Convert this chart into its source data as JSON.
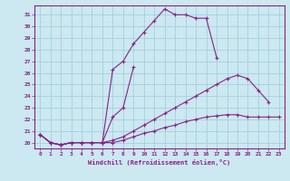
{
  "xlabel": "Windchill (Refroidissement éolien,°C)",
  "bg_color": "#cce8f0",
  "grid_color": "#99ccdd",
  "line_color": "#882288",
  "spine_color": "#882288",
  "xlim": [
    -0.5,
    23.5
  ],
  "ylim": [
    19.5,
    31.8
  ],
  "yticks": [
    20,
    21,
    22,
    23,
    24,
    25,
    26,
    27,
    28,
    29,
    30,
    31
  ],
  "xticks": [
    0,
    1,
    2,
    3,
    4,
    5,
    6,
    7,
    8,
    9,
    10,
    11,
    12,
    13,
    14,
    15,
    16,
    17,
    18,
    19,
    20,
    21,
    22,
    23
  ],
  "series": [
    {
      "x": [
        0,
        1,
        2,
        3,
        4,
        5,
        6,
        7,
        8,
        9,
        10,
        11,
        12,
        13,
        14,
        15,
        16,
        17
      ],
      "y": [
        20.7,
        20.0,
        19.8,
        20.0,
        20.0,
        20.0,
        20.0,
        26.3,
        27.0,
        28.5,
        29.5,
        30.5,
        31.5,
        31.0,
        31.0,
        30.7,
        30.7,
        27.3
      ]
    },
    {
      "x": [
        0,
        1,
        2,
        3,
        4,
        5,
        6,
        7,
        8,
        9
      ],
      "y": [
        20.7,
        20.0,
        19.8,
        20.0,
        20.0,
        20.0,
        20.0,
        22.2,
        23.0,
        26.5
      ]
    },
    {
      "x": [
        0,
        1,
        2,
        3,
        4,
        5,
        6,
        7,
        8,
        9,
        10,
        11,
        12,
        13,
        14,
        15,
        16,
        17,
        18,
        19,
        20,
        21,
        22
      ],
      "y": [
        20.7,
        20.0,
        19.8,
        20.0,
        20.0,
        20.0,
        20.0,
        20.2,
        20.5,
        21.0,
        21.5,
        22.0,
        22.5,
        23.0,
        23.5,
        24.0,
        24.5,
        25.0,
        25.5,
        25.8,
        25.5,
        24.5,
        23.5
      ]
    },
    {
      "x": [
        0,
        1,
        2,
        3,
        4,
        5,
        6,
        7,
        8,
        9,
        10,
        11,
        12,
        13,
        14,
        15,
        16,
        17,
        18,
        19,
        20,
        21,
        22,
        23
      ],
      "y": [
        20.7,
        20.0,
        19.8,
        20.0,
        20.0,
        20.0,
        20.0,
        20.0,
        20.2,
        20.5,
        20.8,
        21.0,
        21.3,
        21.5,
        21.8,
        22.0,
        22.2,
        22.3,
        22.4,
        22.4,
        22.2,
        22.2,
        22.2,
        22.2
      ]
    }
  ]
}
